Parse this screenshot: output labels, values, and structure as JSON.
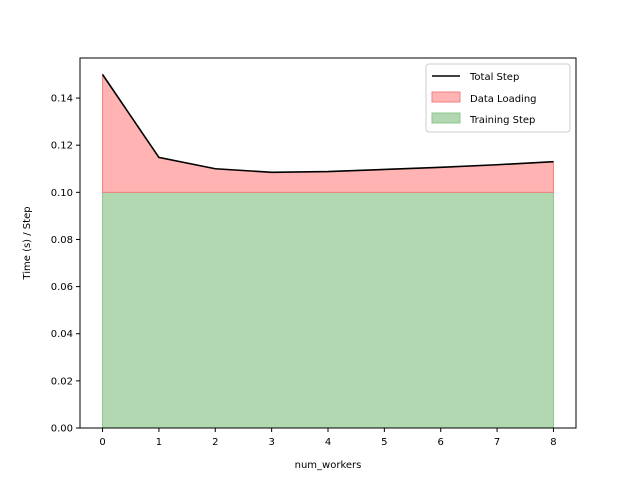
{
  "chart_data": {
    "type": "area",
    "xlabel": "num_workers",
    "ylabel": "Time (s) / Step",
    "x": [
      0,
      1,
      2,
      3,
      4,
      5,
      6,
      7,
      8
    ],
    "xlim": [
      -0.4,
      8.4
    ],
    "ylim": [
      0,
      0.157
    ],
    "xticks": [
      "0",
      "1",
      "2",
      "3",
      "4",
      "5",
      "6",
      "7",
      "8"
    ],
    "yticks": [
      "0.00",
      "0.02",
      "0.04",
      "0.06",
      "0.08",
      "0.10",
      "0.12",
      "0.14"
    ],
    "series": [
      {
        "name": "Total Step",
        "kind": "line",
        "color": "#000000",
        "values": [
          0.15,
          0.1148,
          0.11,
          0.1085,
          0.1088,
          0.1097,
          0.1106,
          0.1117,
          0.113
        ]
      },
      {
        "name": "Data Loading",
        "kind": "fill",
        "color": "#ffb3b3",
        "edge": "#f08080",
        "values": [
          0.05,
          0.0148,
          0.01,
          0.0085,
          0.0088,
          0.0097,
          0.0106,
          0.0117,
          0.013
        ]
      },
      {
        "name": "Training Step",
        "kind": "fill",
        "color": "#b2d8b2",
        "edge": "#8fc48f",
        "values": [
          0.1,
          0.1,
          0.1,
          0.1,
          0.1,
          0.1,
          0.1,
          0.1,
          0.1
        ]
      }
    ],
    "grid": false,
    "legend_position": "top-right"
  }
}
